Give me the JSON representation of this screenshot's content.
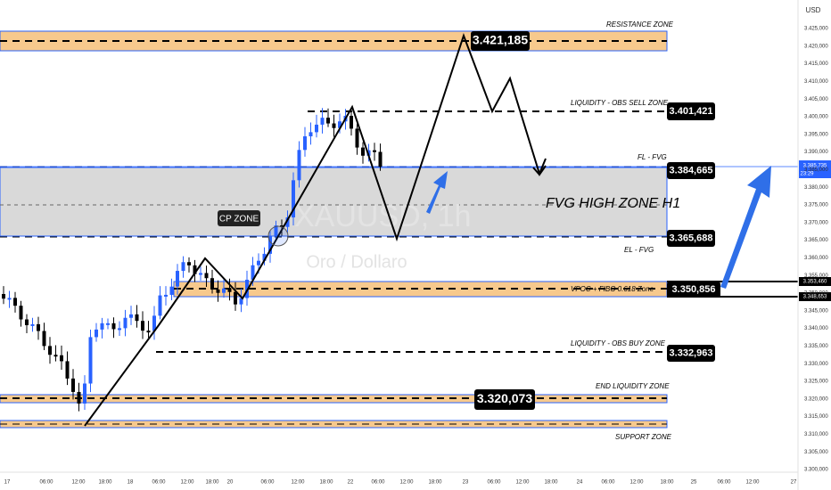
{
  "axis": {
    "currency": "USD",
    "price_labels": [
      "3.425,000",
      "3.420,000",
      "3.415,000",
      "3.410,000",
      "3.405,000",
      "3.400,000",
      "3.395,000",
      "3.390,000",
      "3.385,000",
      "3.380,000",
      "3.375,000",
      "3.370,000",
      "3.365,000",
      "3.360,000",
      "3.355,000",
      "3.350,000",
      "3.345,000",
      "3.340,000",
      "3.335,000",
      "3.330,000",
      "3.325,000",
      "3.320,000",
      "3.315,000",
      "3.310,000",
      "3.305,000",
      "3.300,000"
    ],
    "time_labels": [
      "17",
      "06:00",
      "12:00",
      "18:00",
      "18",
      "06:00",
      "12:00",
      "18:00",
      "20",
      "06:00",
      "12:00",
      "18:00",
      "22",
      "06:00",
      "12:00",
      "18:00",
      "23",
      "06:00",
      "12:00",
      "18:00",
      "24",
      "06:00",
      "12:00",
      "18:00",
      "25",
      "06:00",
      "12:00",
      "27"
    ]
  },
  "price_tags": {
    "current": "3.385,735",
    "countdown": "23:29",
    "upper": "3.353,460",
    "lower": "3.348,653"
  },
  "zones": [
    {
      "label": "RESISTANCE  ZONE",
      "price": "3.421,185"
    },
    {
      "label": "LIQUIDITY - OBS SELL ZONE",
      "price": "3.401,421"
    },
    {
      "label": "FL - FVG",
      "price": "3.384,665"
    },
    {
      "label": "EL - FVG",
      "price": "3.365,688"
    },
    {
      "label": "VPOC + FIBO 0.618 Zone",
      "price": "3.350,856"
    },
    {
      "label": "LIQUIDITY - OBS BUY ZONE",
      "price": "3.332,963"
    },
    {
      "label": "END LIQUIDITY ZONE",
      "price": "3.320,073"
    },
    {
      "label": "SUPPORT ZONE"
    }
  ],
  "annotations": {
    "cp_zone": "CP ZONE",
    "fvg": "FVG HIGH ZONE H1",
    "watermark_symbol": "XAUUSD, 1h",
    "watermark_name": "Oro / Dollaro"
  }
}
